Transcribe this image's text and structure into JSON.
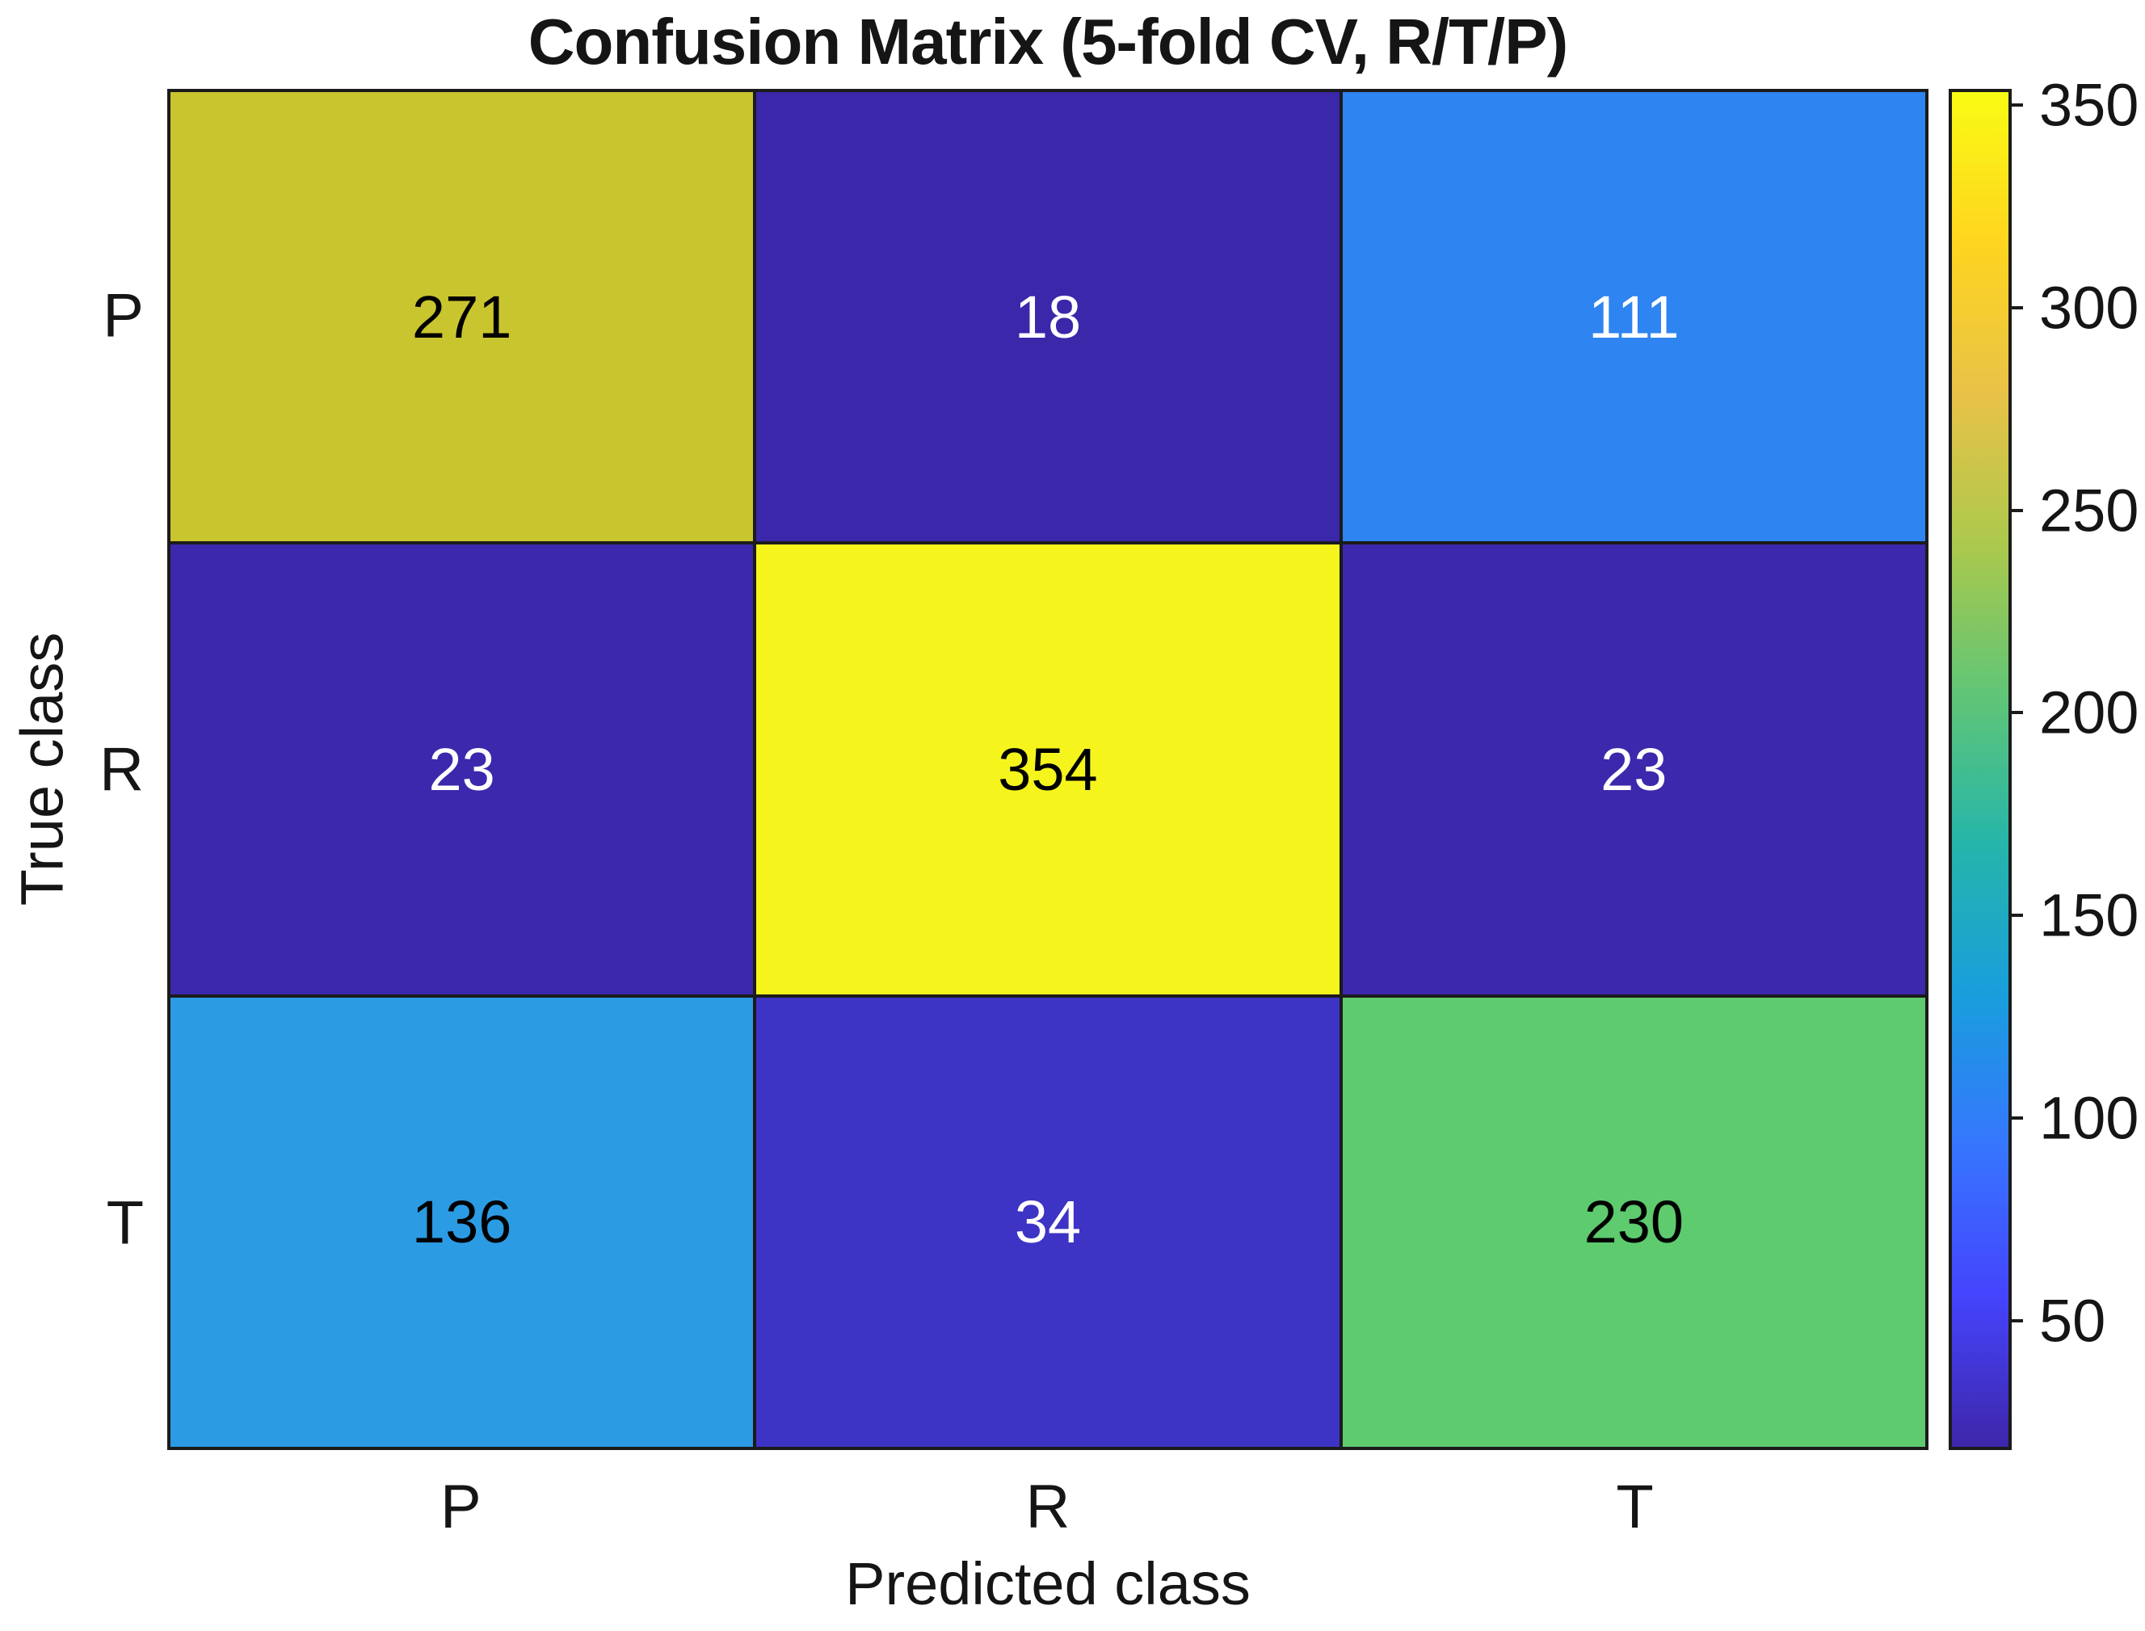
{
  "title": "Confusion Matrix (5-fold CV, R/T/P)",
  "axes": {
    "x_label": "Predicted class",
    "y_label": "True class",
    "x_ticks": [
      "P",
      "R",
      "T"
    ],
    "y_ticks": [
      "P",
      "R",
      "T"
    ]
  },
  "chart_data": {
    "type": "heatmap",
    "title": "Confusion Matrix (5-fold CV, R/T/P)",
    "xlabel": "Predicted class",
    "ylabel": "True class",
    "x_categories": [
      "P",
      "R",
      "T"
    ],
    "y_categories": [
      "P",
      "R",
      "T"
    ],
    "values": [
      [
        271,
        18,
        111
      ],
      [
        23,
        354,
        23
      ],
      [
        136,
        34,
        230
      ]
    ],
    "colormap": "parula",
    "color_range": [
      18,
      354
    ],
    "colorbar_ticks": [
      50,
      100,
      150,
      200,
      250,
      300,
      350
    ],
    "legend_position": "right-colorbar",
    "grid": false
  },
  "cells": [
    {
      "row": "P",
      "col": "P",
      "value": "271",
      "bg": "#C9C52E",
      "fg": "#000000"
    },
    {
      "row": "P",
      "col": "R",
      "value": "18",
      "bg": "#3A27A9",
      "fg": "#FFFFFF"
    },
    {
      "row": "P",
      "col": "T",
      "value": "111",
      "bg": "#2E84F0",
      "fg": "#FFFFFF"
    },
    {
      "row": "R",
      "col": "P",
      "value": "23",
      "bg": "#3B28AC",
      "fg": "#FFFFFF"
    },
    {
      "row": "R",
      "col": "R",
      "value": "354",
      "bg": "#F5F51D",
      "fg": "#000000"
    },
    {
      "row": "R",
      "col": "T",
      "value": "23",
      "bg": "#3B28AC",
      "fg": "#FFFFFF"
    },
    {
      "row": "T",
      "col": "P",
      "value": "136",
      "bg": "#2B9BE4",
      "fg": "#000000"
    },
    {
      "row": "T",
      "col": "R",
      "value": "34",
      "bg": "#3D33C4",
      "fg": "#FFFFFF"
    },
    {
      "row": "T",
      "col": "T",
      "value": "230",
      "bg": "#5DCB6E",
      "fg": "#000000"
    }
  ],
  "colorbar": {
    "tick_labels": [
      "350",
      "300",
      "250",
      "200",
      "150",
      "100",
      "50"
    ],
    "tick_values": [
      350,
      300,
      250,
      200,
      150,
      100,
      50
    ],
    "min_value": 18,
    "max_value": 354,
    "gradient_bottom_to_top": [
      "#3E26A9",
      "#4544FD",
      "#3676FE",
      "#199EDD",
      "#25B5AA",
      "#60C576",
      "#ACC94C",
      "#E9C248",
      "#FED51F",
      "#F9FB14"
    ]
  },
  "geometry": {
    "row_center_fracs": [
      0.1667,
      0.5,
      0.8333
    ],
    "col_center_fracs": [
      0.1667,
      0.5,
      0.8333
    ]
  }
}
